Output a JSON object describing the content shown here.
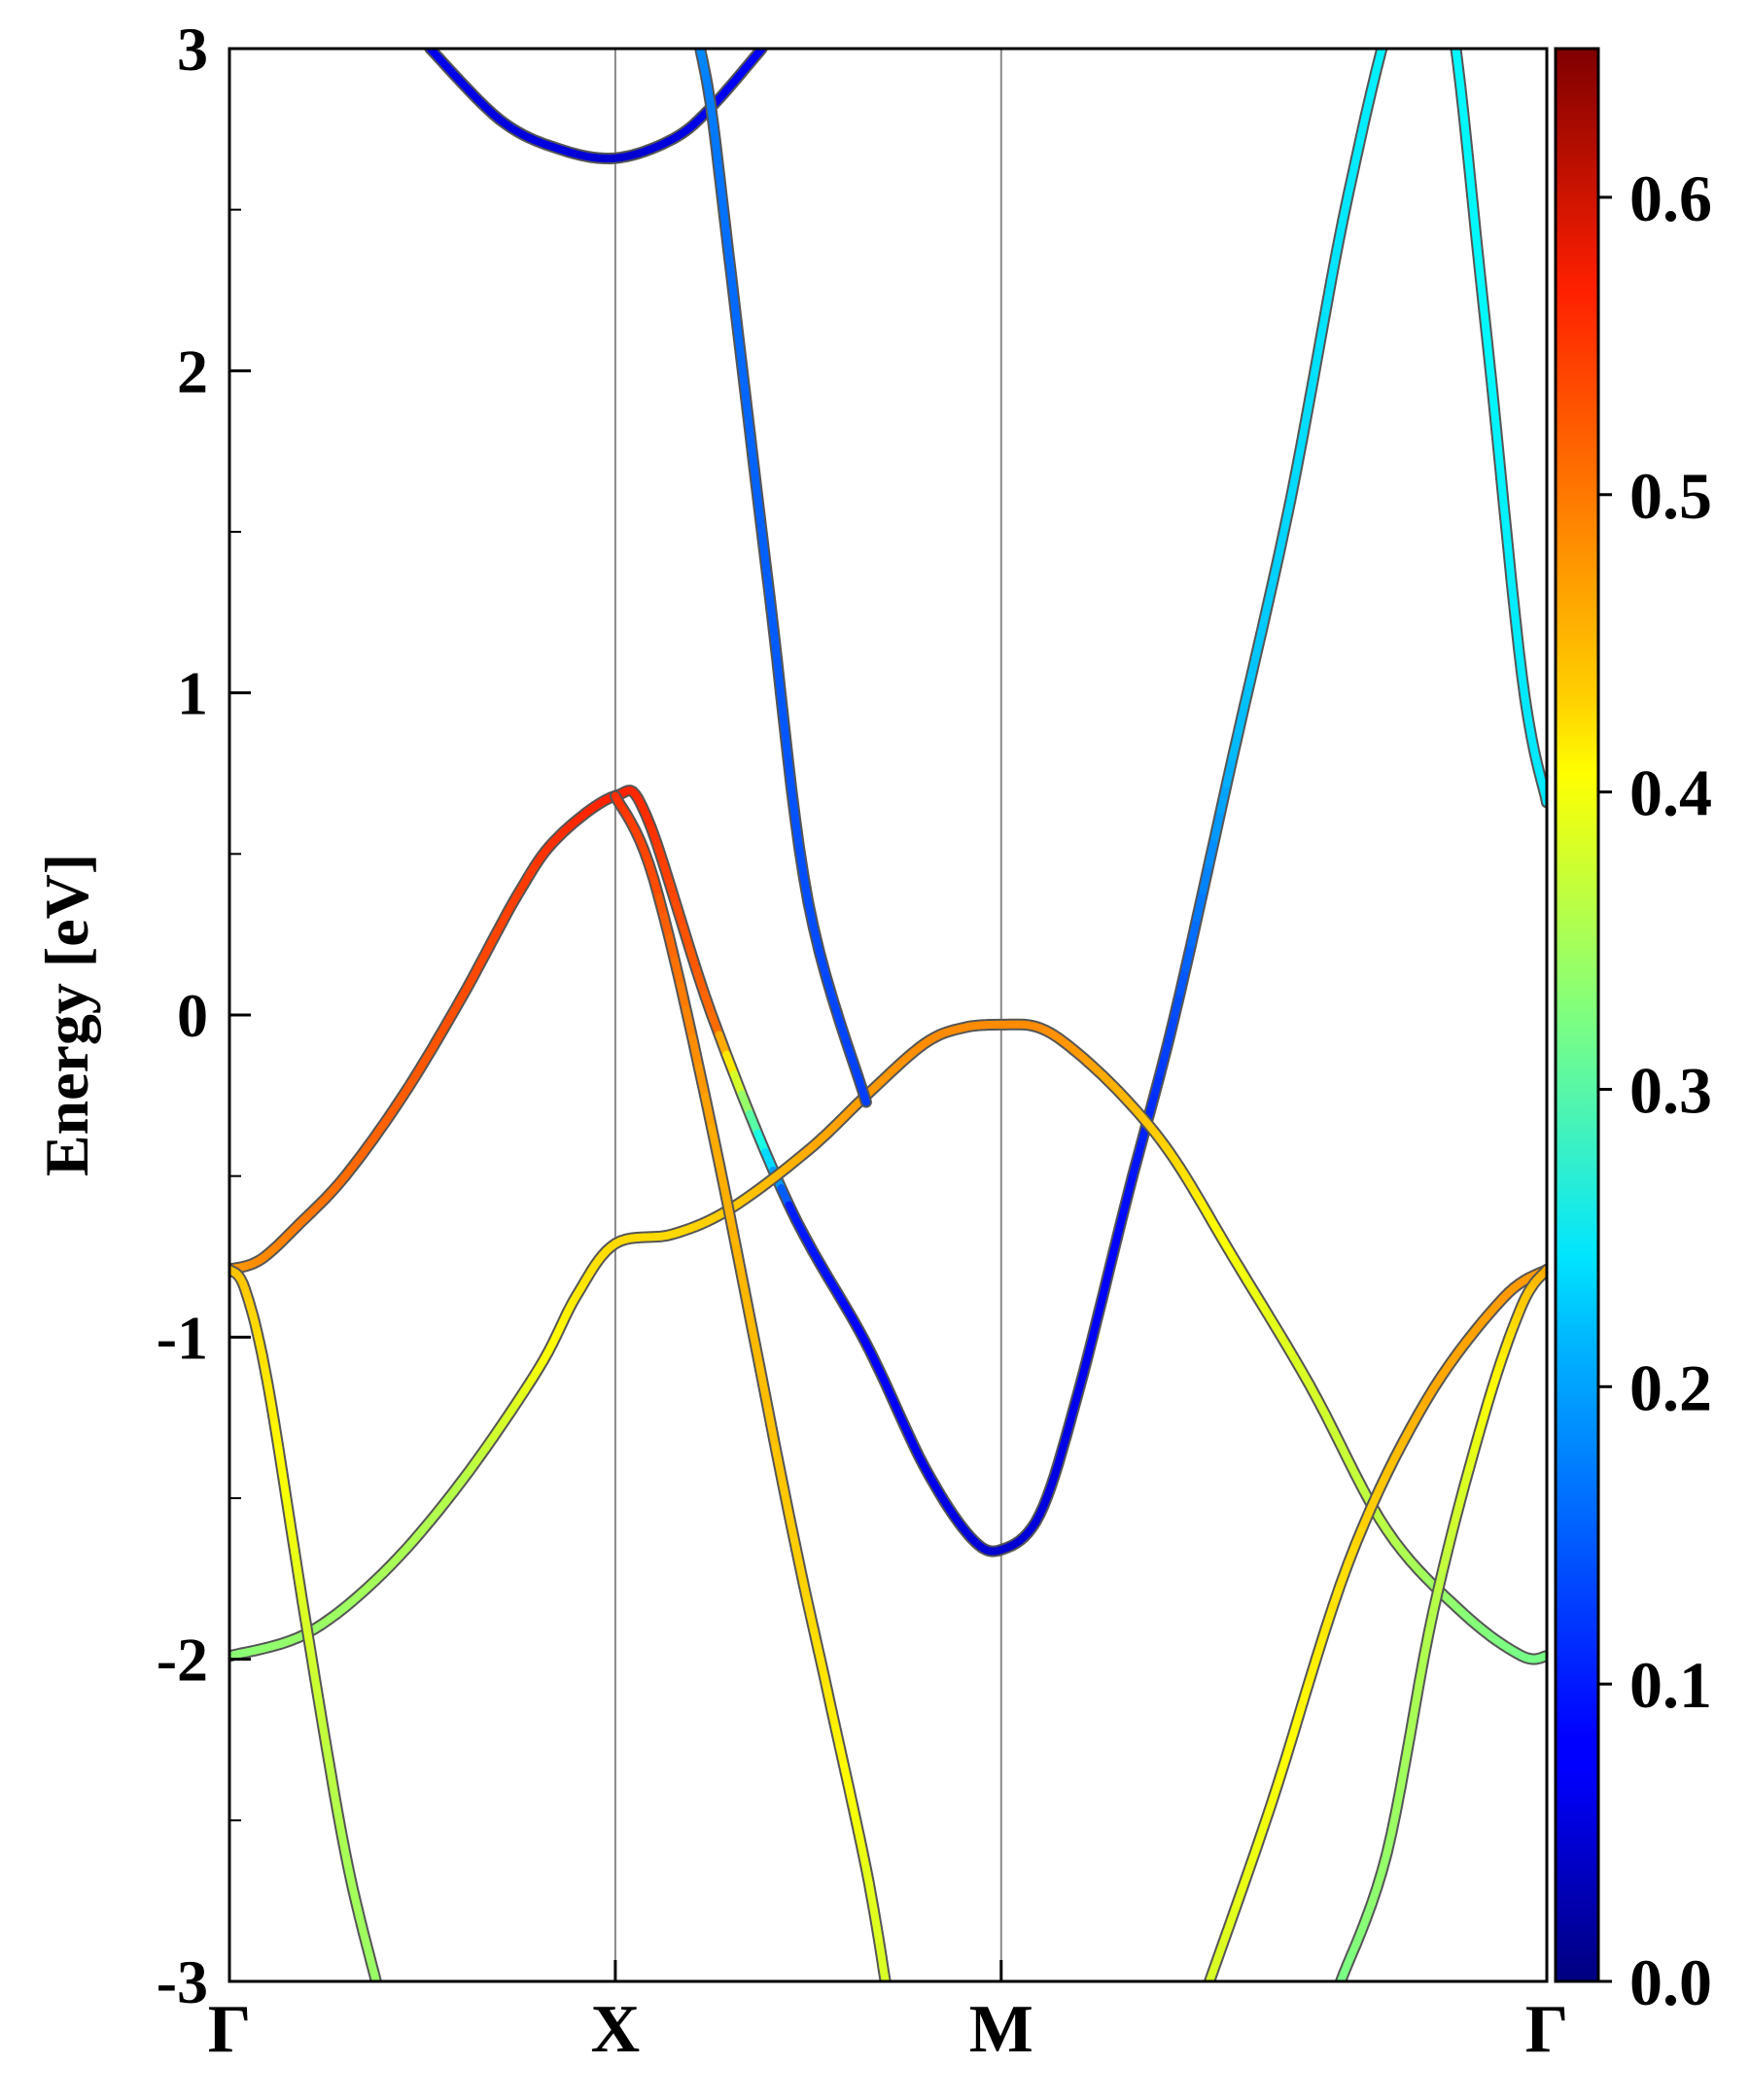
{
  "chart_data": {
    "type": "line",
    "subtype": "band-structure",
    "ylabel": "Energy [eV]",
    "xlabel": "",
    "title": "",
    "ylim": [
      -3,
      3
    ],
    "y_ticks": [
      "-3",
      "-2",
      "-1",
      "0",
      "1",
      "2",
      "3"
    ],
    "k_points": [
      {
        "label": "Γ",
        "k": 0.0
      },
      {
        "label": "X",
        "k": 1.0
      },
      {
        "label": "M",
        "k": 2.0
      },
      {
        "label": "Γ",
        "k": 3.414
      }
    ],
    "xlim": [
      0,
      3.414
    ],
    "high_symmetry_lines": true,
    "grid": false,
    "colorbar": {
      "colormap": "jet",
      "range": [
        0.0,
        0.65
      ],
      "ticks": [
        "0.0",
        "0.1",
        "0.2",
        "0.3",
        "0.4",
        "0.5",
        "0.6"
      ]
    },
    "series": [
      {
        "k": [
          0.0,
          0.08,
          0.18,
          0.3,
          0.45,
          0.6,
          0.75,
          0.85,
          1.0,
          1.08,
          1.25,
          1.45,
          1.65,
          1.8,
          1.92,
          2.0,
          2.1,
          2.2,
          2.33,
          2.45,
          2.6,
          2.75,
          2.9,
          3.04,
          3.15,
          3.25,
          3.35,
          3.414
        ],
        "energy": [
          -0.79,
          -0.76,
          -0.65,
          -0.5,
          -0.25,
          0.05,
          0.38,
          0.55,
          0.68,
          0.62,
          0.0,
          -0.59,
          -1.02,
          -1.4,
          -1.62,
          -1.66,
          -1.55,
          -1.17,
          -0.55,
          0.0,
          0.8,
          1.6,
          2.55,
          3.2,
          3.2,
          2.2,
          1.05,
          0.66
        ],
        "weight": [
          0.47,
          0.48,
          0.49,
          0.5,
          0.51,
          0.52,
          0.53,
          0.54,
          0.55,
          0.54,
          0.5,
          0.1,
          0.08,
          0.07,
          0.06,
          0.05,
          0.06,
          0.07,
          0.09,
          0.13,
          0.2,
          0.22,
          0.23,
          0.24,
          0.24,
          0.24,
          0.23,
          0.23
        ]
      },
      {
        "k": [
          0.0,
          0.2,
          0.4,
          0.6,
          0.8,
          0.9,
          1.0,
          1.15,
          1.3,
          1.5,
          1.65,
          1.8,
          1.9,
          2.0,
          2.1,
          2.2,
          2.33,
          2.45,
          2.6,
          2.8,
          3.0,
          3.2,
          3.35,
          3.414
        ],
        "energy": [
          -1.99,
          -1.92,
          -1.73,
          -1.45,
          -1.1,
          -0.87,
          -0.71,
          -0.68,
          -0.6,
          -0.42,
          -0.25,
          -0.09,
          -0.04,
          -0.03,
          -0.04,
          -0.12,
          -0.27,
          -0.45,
          -0.75,
          -1.15,
          -1.6,
          -1.86,
          -1.99,
          -1.99
        ],
        "weight": [
          0.33,
          0.34,
          0.35,
          0.36,
          0.4,
          0.42,
          0.43,
          0.43,
          0.44,
          0.46,
          0.47,
          0.48,
          0.48,
          0.48,
          0.48,
          0.47,
          0.45,
          0.43,
          0.4,
          0.38,
          0.36,
          0.33,
          0.32,
          0.32
        ]
      },
      {
        "k": [
          0.0,
          0.04,
          0.1,
          0.2,
          0.3,
          0.38
        ],
        "energy": [
          -0.79,
          -0.85,
          -1.15,
          -1.9,
          -2.6,
          -3.0
        ],
        "weight": [
          0.45,
          0.44,
          0.42,
          0.38,
          0.35,
          0.34
        ]
      },
      {
        "k": [
          1.0,
          1.1,
          1.25,
          1.45,
          1.55,
          1.65,
          1.7
        ],
        "energy": [
          0.68,
          0.42,
          -0.35,
          -1.55,
          -2.1,
          -2.65,
          -3.0
        ],
        "weight": [
          0.54,
          0.52,
          0.46,
          0.44,
          0.42,
          0.39,
          0.38
        ]
      },
      {
        "k": [
          2.54,
          2.7,
          2.9,
          3.1,
          3.3,
          3.414
        ],
        "energy": [
          -3.0,
          -2.45,
          -1.7,
          -1.2,
          -0.88,
          -0.79
        ],
        "weight": [
          0.38,
          0.4,
          0.43,
          0.46,
          0.47,
          0.47
        ]
      },
      {
        "k": [
          2.88,
          3.0,
          3.12,
          3.25,
          3.35,
          3.414
        ],
        "energy": [
          -3.0,
          -2.6,
          -1.85,
          -1.25,
          -0.9,
          -0.79
        ],
        "weight": [
          0.32,
          0.34,
          0.36,
          0.4,
          0.44,
          0.46
        ]
      },
      {
        "k": [
          0.52,
          0.7,
          0.85,
          1.0,
          1.15,
          1.25,
          1.38
        ],
        "energy": [
          3.0,
          2.78,
          2.69,
          2.66,
          2.72,
          2.82,
          3.0
        ],
        "weight": [
          0.07,
          0.06,
          0.06,
          0.05,
          0.06,
          0.07,
          0.08
        ]
      },
      {
        "k": [
          1.22,
          1.25,
          1.3,
          1.4,
          1.5,
          1.65
        ],
        "energy": [
          3.0,
          2.8,
          2.3,
          1.3,
          0.35,
          -0.27
        ],
        "weight": [
          0.17,
          0.16,
          0.15,
          0.14,
          0.13,
          0.12
        ]
      }
    ]
  }
}
